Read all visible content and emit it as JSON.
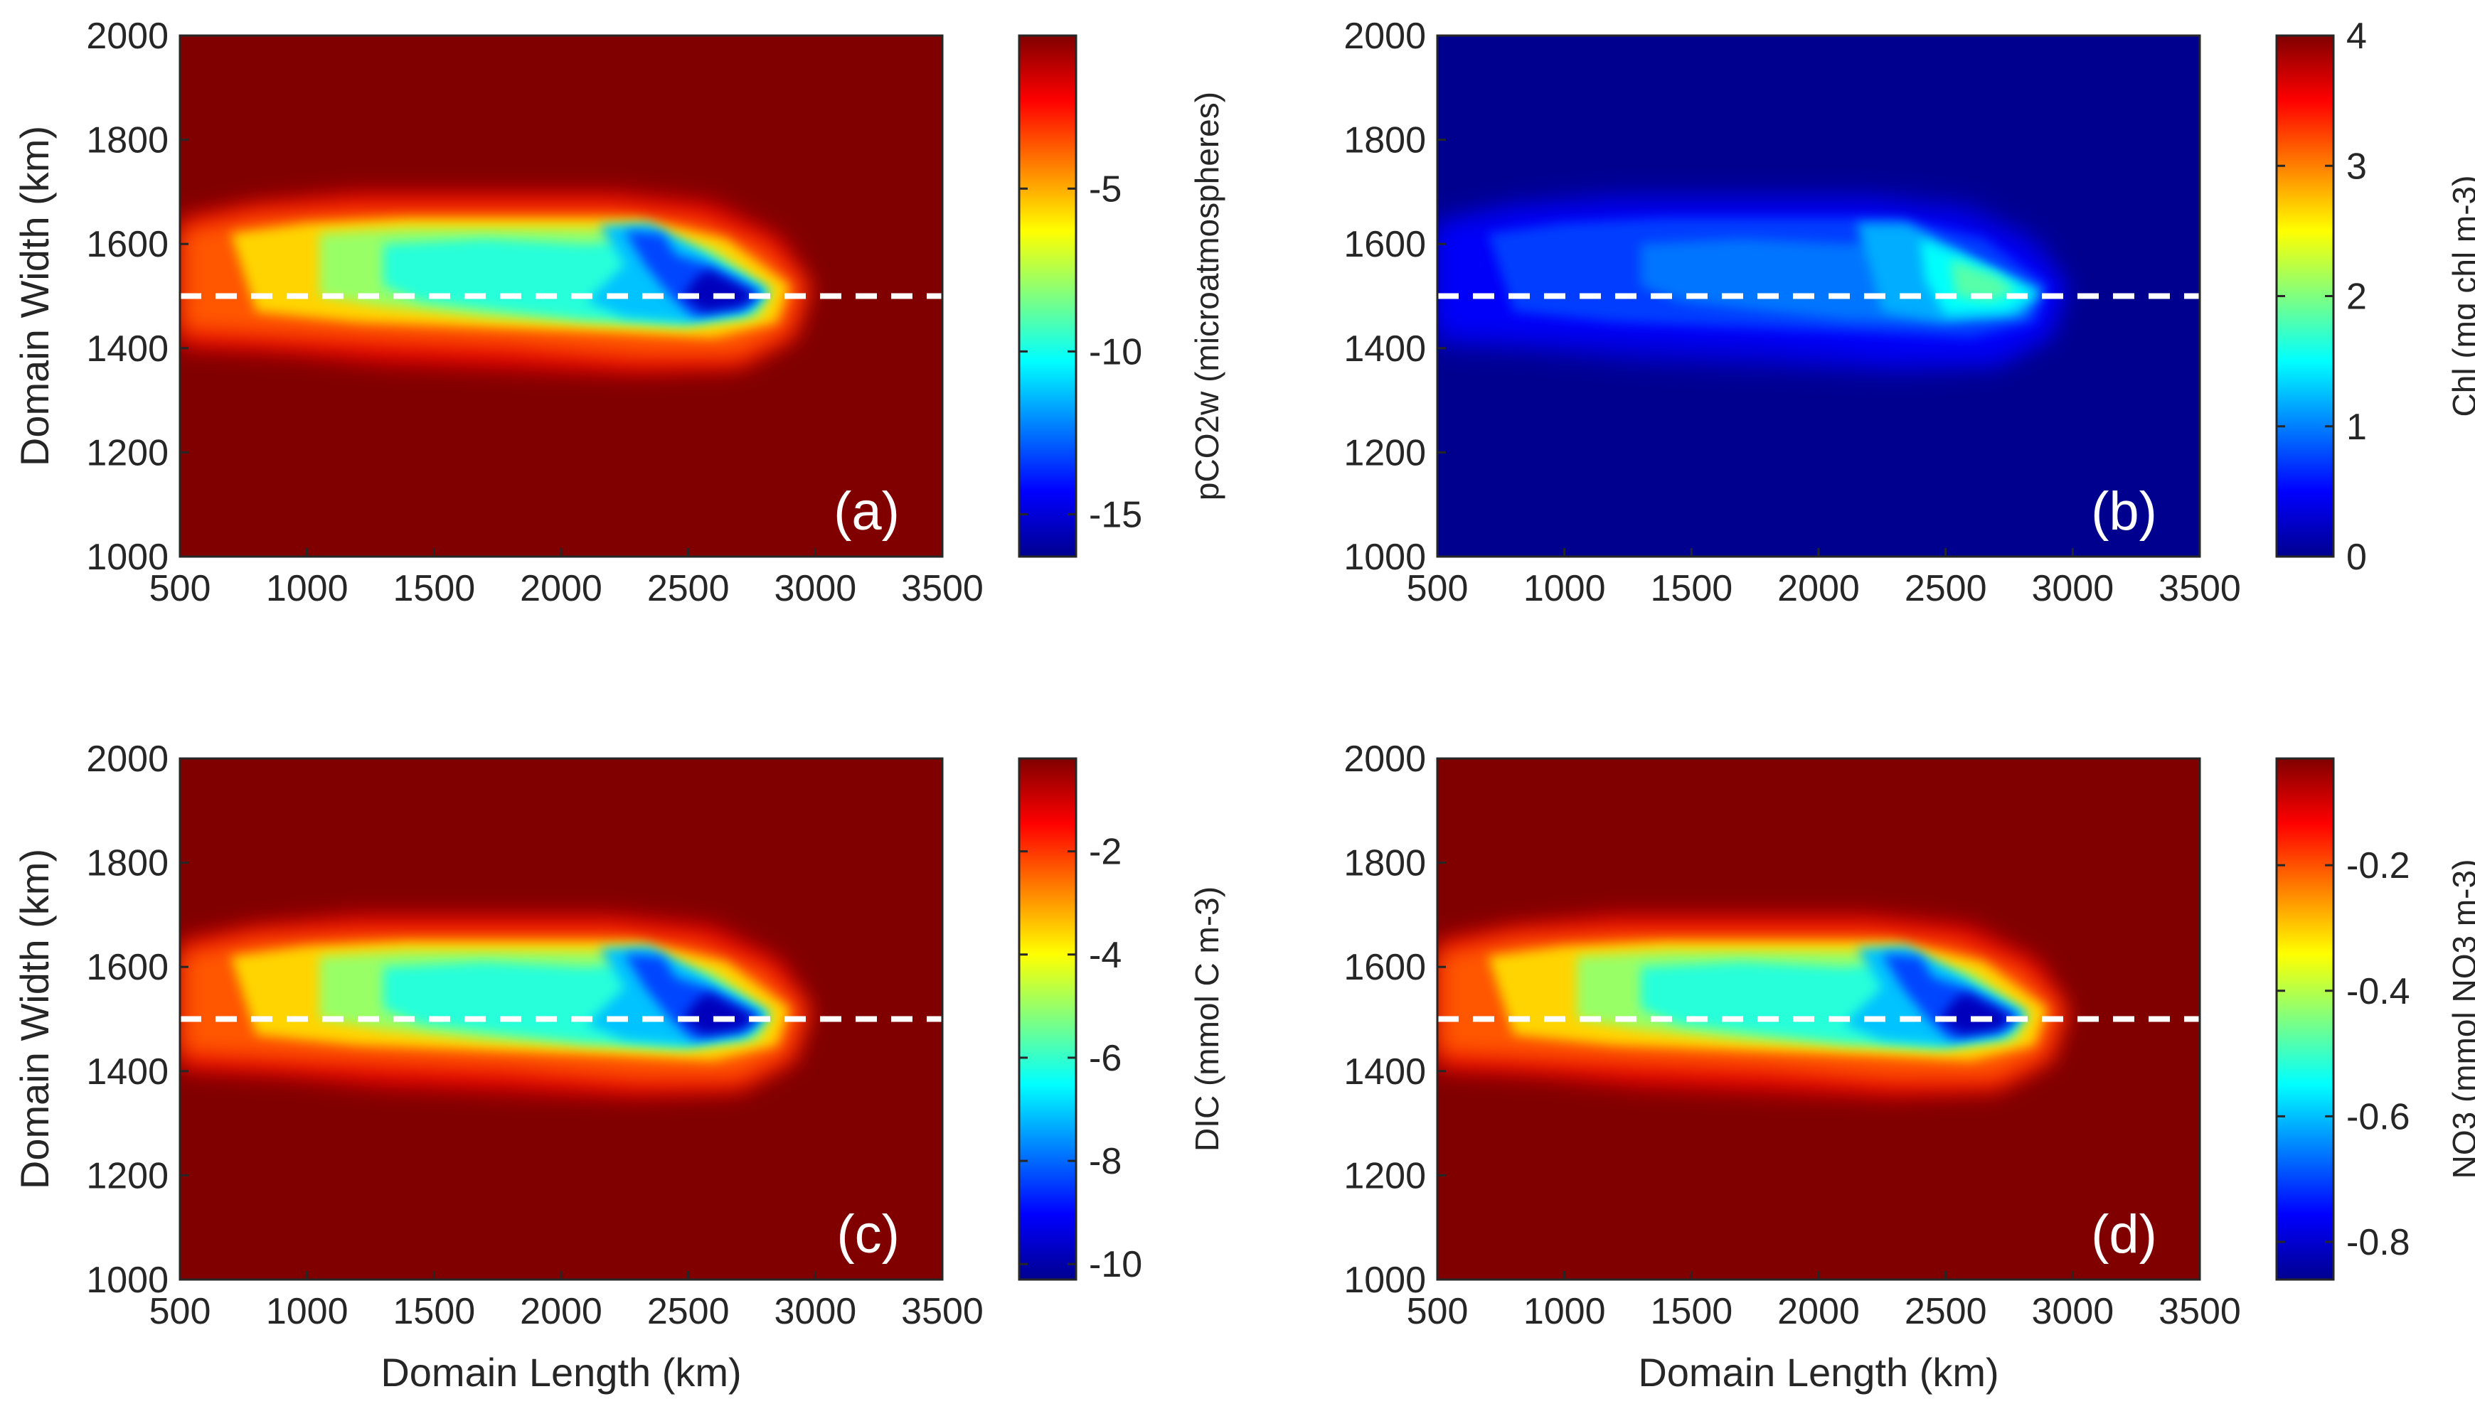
{
  "chart_data": [
    {
      "type": "heatmap",
      "panel_label": "(a)",
      "colorbar_label": "pCO2w (microatmospheres)",
      "colormap": "jet",
      "clim": [
        -16.3,
        -0.3
      ],
      "colorbar_ticks": [
        -5,
        -10,
        -15
      ],
      "background": "max",
      "xlabel": "",
      "ylabel": "Domain Width (km)",
      "xlim": [
        500,
        3500
      ],
      "ylim": [
        1000,
        2000
      ],
      "xticks": [
        500,
        1000,
        1500,
        2000,
        2500,
        3000,
        3500
      ],
      "yticks": [
        1000,
        1200,
        1400,
        1600,
        1800,
        2000
      ],
      "reference_line_y": 1500
    },
    {
      "type": "heatmap",
      "panel_label": "(b)",
      "colorbar_label": "Chl (mg chl m-3)",
      "colormap": "jet",
      "clim": [
        0,
        4
      ],
      "colorbar_ticks": [
        0,
        1,
        2,
        3,
        4
      ],
      "background": "min",
      "xlabel": "",
      "ylabel": "",
      "xlim": [
        500,
        3500
      ],
      "ylim": [
        1000,
        2000
      ],
      "xticks": [
        500,
        1000,
        1500,
        2000,
        2500,
        3000,
        3500
      ],
      "yticks": [
        1000,
        1200,
        1400,
        1600,
        1800,
        2000
      ],
      "reference_line_y": 1500
    },
    {
      "type": "heatmap",
      "panel_label": "(c)",
      "colorbar_label": "DIC (mmol C m-3)",
      "colormap": "jet",
      "clim": [
        -10.3,
        -0.2
      ],
      "colorbar_ticks": [
        -2,
        -4,
        -6,
        -8,
        -10
      ],
      "background": "max",
      "xlabel": "Domain Length (km)",
      "ylabel": "Domain Width (km)",
      "xlim": [
        500,
        3500
      ],
      "ylim": [
        1000,
        2000
      ],
      "xticks": [
        500,
        1000,
        1500,
        2000,
        2500,
        3000,
        3500
      ],
      "yticks": [
        1000,
        1200,
        1400,
        1600,
        1800,
        2000
      ],
      "reference_line_y": 1500
    },
    {
      "type": "heatmap",
      "panel_label": "(d)",
      "colorbar_label": "NO3 (mmol NO3 m-3)",
      "colormap": "jet",
      "clim": [
        -0.86,
        -0.03
      ],
      "colorbar_ticks": [
        -0.2,
        -0.4,
        -0.6,
        -0.8
      ],
      "background": "max",
      "xlabel": "Domain Length (km)",
      "ylabel": "",
      "xlim": [
        500,
        3500
      ],
      "ylim": [
        1000,
        2000
      ],
      "xticks": [
        500,
        1000,
        1500,
        2000,
        2500,
        3000,
        3500
      ],
      "yticks": [
        1000,
        1200,
        1400,
        1600,
        1800,
        2000
      ],
      "reference_line_y": 1500
    }
  ]
}
